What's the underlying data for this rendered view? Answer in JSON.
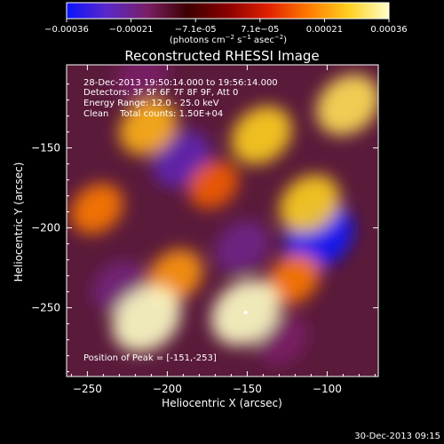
{
  "chart_data": {
    "type": "heatmap",
    "title": "Reconstructed RHESSI Image",
    "xlabel": "Heliocentric X (arcsec)",
    "ylabel": "Heliocentric Y (arcsec)",
    "xlim": [
      -263,
      -68
    ],
    "ylim": [
      -293,
      -98
    ],
    "x_ticks": [
      -250,
      -200,
      -150,
      -100
    ],
    "y_ticks": [
      -250,
      -200,
      -150
    ],
    "colorbar": {
      "range": [
        -0.00036,
        0.00036
      ],
      "tick_labels": [
        "-0.00036",
        "-0.00021",
        "-7.1e-05",
        "7.1e-05",
        "0.00021",
        "0.00036"
      ],
      "label": "(photons cm^-2 s^-1 asec^-2)",
      "colors": [
        "#0a14ff",
        "#5a28c8",
        "#7a1f66",
        "#3c0000",
        "#8a0000",
        "#e02000",
        "#ff7a00",
        "#ffd020",
        "#ffffc8"
      ]
    },
    "annotations": {
      "time": "28-Dec-2013 19:50:14.000 to 19:56:14.000",
      "detectors": "Detectors: 3F 5F 6F 7F 8F 9F, Att 0",
      "energy": "Energy Range: 12.0 - 25.0 keV",
      "clean": "Clean    Total counts: 1.50E+04",
      "peak": "Position of Peak = [-151,-253]"
    },
    "peak": [
      -151,
      -253
    ],
    "bright_features": [
      {
        "x": -213,
        "y": -257,
        "value": 0.00036
      },
      {
        "x": -151,
        "y": -253,
        "value": 0.00036
      },
      {
        "x": -87,
        "y": -123,
        "value": 0.0003
      },
      {
        "x": -141,
        "y": -142,
        "value": 0.00027
      },
      {
        "x": -111,
        "y": -185,
        "value": 0.00027
      },
      {
        "x": -212,
        "y": -137,
        "value": 0.00024
      },
      {
        "x": -244,
        "y": -188,
        "value": 0.00018
      },
      {
        "x": -195,
        "y": -230,
        "value": 0.00021
      },
      {
        "x": -121,
        "y": -232,
        "value": 0.00018
      },
      {
        "x": -171,
        "y": -173,
        "value": 0.00015
      }
    ],
    "dark_features": [
      {
        "x": -105,
        "y": -205,
        "value": -0.00036
      },
      {
        "x": -191,
        "y": -157,
        "value": -0.00025
      },
      {
        "x": -230,
        "y": -237,
        "value": -0.0002
      },
      {
        "x": -153,
        "y": -212,
        "value": -0.00021
      },
      {
        "x": -216,
        "y": -105,
        "value": -0.00018
      },
      {
        "x": -128,
        "y": -270,
        "value": -0.00018
      }
    ]
  },
  "footer": {
    "timestamp": "30-Dec-2013 09:15"
  }
}
